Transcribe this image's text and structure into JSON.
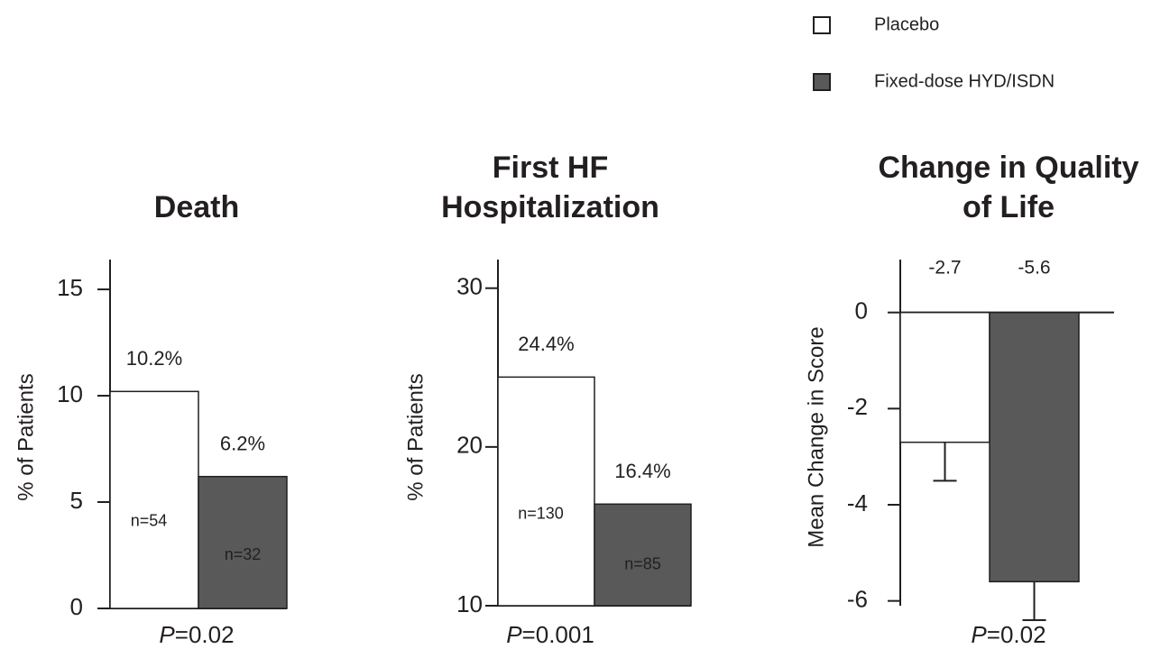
{
  "legend": {
    "position": "top-right",
    "series": [
      {
        "name": "Placebo",
        "color": "#ffffff"
      },
      {
        "name": "Fixed-dose HYD/ISDN",
        "color": "#595959"
      }
    ]
  },
  "chart_data": [
    {
      "type": "bar",
      "title": [
        "Death"
      ],
      "ylabel": "% of Patients",
      "values": [
        10.2,
        6.2
      ],
      "value_labels": [
        "10.2%",
        "6.2%"
      ],
      "n_labels": [
        "n=54",
        "n=32"
      ],
      "ylim": [
        0,
        16.4
      ],
      "yticks": [
        0,
        5,
        10,
        15
      ],
      "p_label": "P",
      "p_value": "=0.02"
    },
    {
      "type": "bar",
      "title": [
        "First HF",
        "Hospitalization"
      ],
      "ylabel": "% of Patients",
      "values": [
        24.4,
        16.4
      ],
      "value_labels": [
        "24.4%",
        "16.4%"
      ],
      "n_labels": [
        "n=130",
        "n=85"
      ],
      "ylim": [
        10,
        31.8
      ],
      "yticks": [
        10,
        20,
        30
      ],
      "p_label": "P",
      "p_value": "=0.001"
    },
    {
      "type": "errorbar",
      "title": [
        "Change in Quality",
        "of Life"
      ],
      "ylabel": "Mean Change in Score",
      "values": [
        -2.7,
        -5.6
      ],
      "errors": [
        0.8,
        0.8
      ],
      "ylim": [
        -6.1,
        1.1
      ],
      "yticks": [
        0,
        -2,
        -4,
        -6
      ],
      "p_label": "P",
      "p_value": "=0.02"
    }
  ]
}
